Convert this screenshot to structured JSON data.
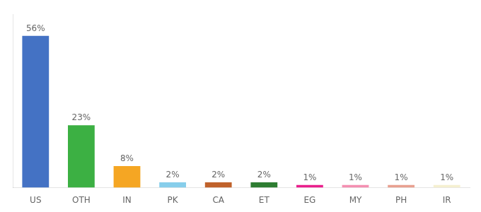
{
  "chart_data": {
    "type": "bar",
    "categories": [
      "US",
      "OTH",
      "IN",
      "PK",
      "CA",
      "ET",
      "EG",
      "MY",
      "PH",
      "IR"
    ],
    "values": [
      56,
      23,
      8,
      2,
      2,
      2,
      1,
      1,
      1,
      1
    ],
    "value_labels": [
      "56%",
      "23%",
      "8%",
      "2%",
      "2%",
      "2%",
      "1%",
      "1%",
      "1%",
      "1%"
    ],
    "colors": [
      "#4472c4",
      "#3cb043",
      "#f5a623",
      "#87ceeb",
      "#c0622b",
      "#2e7d32",
      "#e91e8c",
      "#f48fb1",
      "#e8a090",
      "#f5f0d0"
    ],
    "ylim": [
      0,
      64
    ],
    "yticks": [],
    "grid": false,
    "data_labels": true,
    "tick_labels": "x"
  }
}
